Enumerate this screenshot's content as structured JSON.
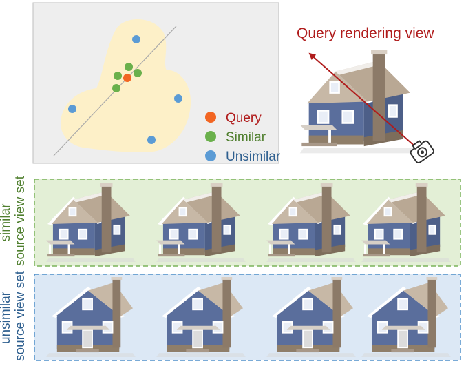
{
  "title": "Query rendering view",
  "legend": [
    {
      "key": "query",
      "label": "Query",
      "color": "#f26522"
    },
    {
      "key": "similar",
      "label": "Similar",
      "color": "#6ab04c"
    },
    {
      "key": "unsimilar",
      "label": "Unsimilar",
      "color": "#5b9bd5"
    }
  ],
  "colors": {
    "title": "#b01c1c",
    "similar_text": "#4f7f2e",
    "unsimilar_text": "#2e5f8f",
    "similar_bg": "#e3efd6",
    "similar_border": "#7ab35a",
    "unsimilar_bg": "#dce8f5",
    "unsimilar_border": "#4f8fca",
    "region": "#fdf0c8",
    "plot_bg": "#eeeeee",
    "siding": "#5a6e9c",
    "roof": "#c7b8a6",
    "chimney": "#8c7a68",
    "foundation": "#8f7e69"
  },
  "similar_set": {
    "line1": "similar",
    "line2": "source view set"
  },
  "unsimilar_set": {
    "line1": "unsimilar",
    "line2": "source view set"
  },
  "icons": {
    "camera": "camera-icon",
    "house": "house-icon"
  }
}
